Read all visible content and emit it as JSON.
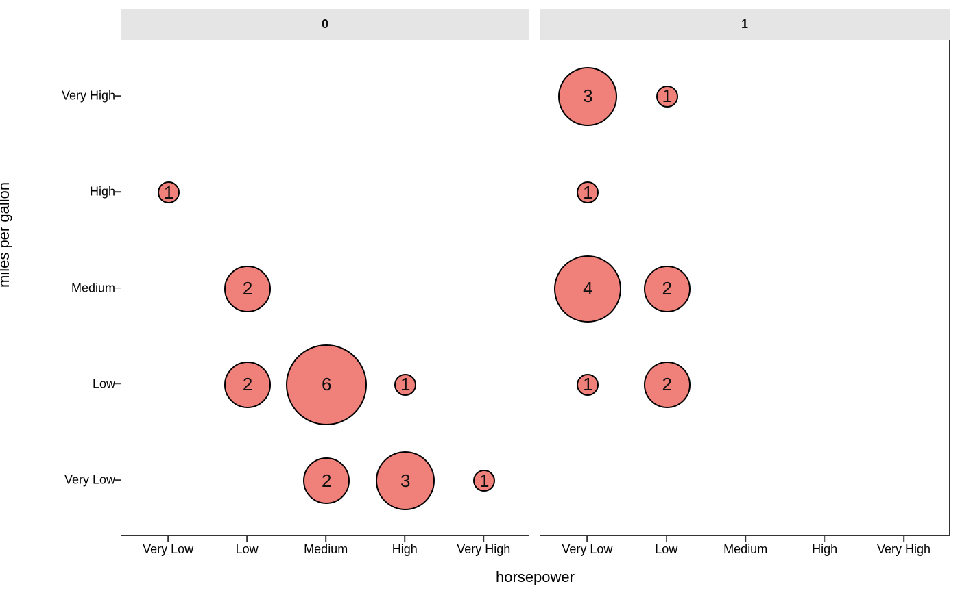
{
  "chart_data": {
    "type": "scatter",
    "subtype": "faceted-count-bubble",
    "xlabel": "horsepower",
    "ylabel": "miles per gallon",
    "x_categories": [
      "Very Low",
      "Low",
      "Medium",
      "High",
      "Very High"
    ],
    "y_categories_top_to_bottom": [
      "Very High",
      "High",
      "Medium",
      "Low",
      "Very Low"
    ],
    "facets": [
      {
        "label": "0",
        "points": [
          {
            "x": "Very Low",
            "y": "High",
            "n": 1
          },
          {
            "x": "Low",
            "y": "Medium",
            "n": 2
          },
          {
            "x": "Low",
            "y": "Low",
            "n": 2
          },
          {
            "x": "Medium",
            "y": "Low",
            "n": 6
          },
          {
            "x": "High",
            "y": "Low",
            "n": 1
          },
          {
            "x": "Medium",
            "y": "Very Low",
            "n": 2
          },
          {
            "x": "High",
            "y": "Very Low",
            "n": 3
          },
          {
            "x": "Very High",
            "y": "Very Low",
            "n": 1
          }
        ]
      },
      {
        "label": "1",
        "points": [
          {
            "x": "Very Low",
            "y": "Very High",
            "n": 3
          },
          {
            "x": "Low",
            "y": "Very High",
            "n": 1
          },
          {
            "x": "Very Low",
            "y": "High",
            "n": 1
          },
          {
            "x": "Very Low",
            "y": "Medium",
            "n": 4
          },
          {
            "x": "Low",
            "y": "Medium",
            "n": 2
          },
          {
            "x": "Very Low",
            "y": "Low",
            "n": 1
          },
          {
            "x": "Low",
            "y": "Low",
            "n": 2
          }
        ]
      }
    ],
    "bubble_radius_px": {
      "1": 16,
      "2": 34,
      "3": 43,
      "4": 49,
      "6": 59
    },
    "colors": {
      "bubble_fill": "#F0807A",
      "bubble_stroke": "#000000",
      "strip_background": "#E5E5E5",
      "panel_border": "#333333",
      "panel_background": "#FFFFFF",
      "text": "#000000"
    },
    "legend": "none",
    "grid": "off"
  }
}
